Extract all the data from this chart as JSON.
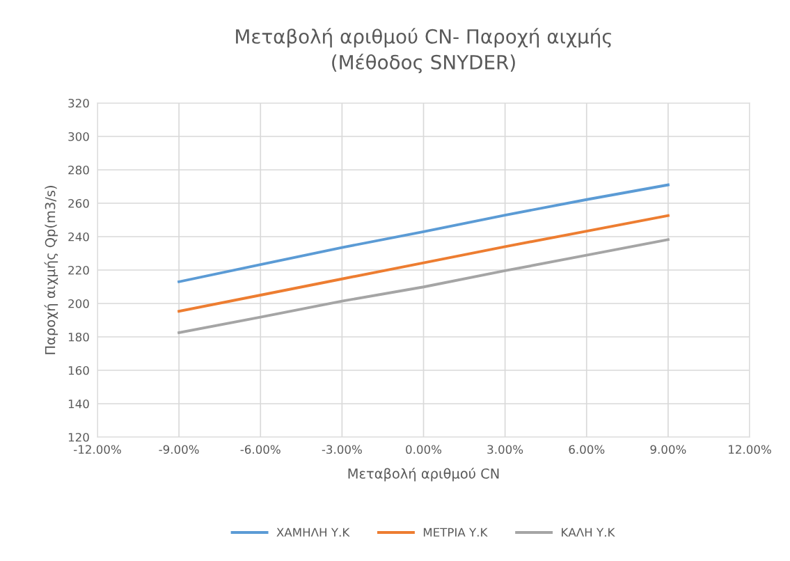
{
  "chart_data": {
    "type": "line",
    "title": "Μεταβολή αριθμού CN- Παροχή αιχμής\n(Μέθοδος SNYDER)",
    "xlabel": "Μεταβολή αριθμού CN",
    "ylabel": "Παροχή αιχμής Qp(m3/s)",
    "x": [
      -9,
      -6,
      -3,
      0,
      3,
      6,
      9
    ],
    "series": [
      {
        "name": "ΧΑΜΗΛΗ Υ.Κ",
        "color": "#5b9bd5",
        "values": [
          213,
          223.3,
          233.5,
          243,
          252.9,
          262.2,
          271
        ]
      },
      {
        "name": "ΜΕΤΡΙΑ Υ.Κ",
        "color": "#ed7d31",
        "values": [
          195.3,
          205,
          214.7,
          224.3,
          234,
          243.3,
          252.6
        ]
      },
      {
        "name": "ΚΑΛΗ Υ.Κ",
        "color": "#a5a5a5",
        "values": [
          182.5,
          191.8,
          201.4,
          209.9,
          219.6,
          228.9,
          238.2
        ]
      }
    ],
    "xlim": [
      -12,
      12
    ],
    "xticks": [
      {
        "value": -12,
        "label": "-12.00%"
      },
      {
        "value": -9,
        "label": "-9.00%"
      },
      {
        "value": -6,
        "label": "-6.00%"
      },
      {
        "value": -3,
        "label": "-3.00%"
      },
      {
        "value": 0,
        "label": "0.00%"
      },
      {
        "value": 3,
        "label": "3.00%"
      },
      {
        "value": 6,
        "label": "6.00%"
      },
      {
        "value": 9,
        "label": "9.00%"
      },
      {
        "value": 12,
        "label": "12.00%"
      }
    ],
    "ylim": [
      120,
      320
    ],
    "yticks": [
      120,
      140,
      160,
      180,
      200,
      220,
      240,
      260,
      280,
      300,
      320
    ],
    "grid": true,
    "legend": "bottom",
    "marker": "none",
    "line_style": "solid"
  }
}
